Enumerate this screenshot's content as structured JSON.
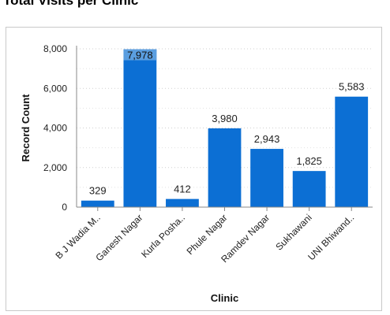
{
  "title": "Total Visits per Clinic",
  "chart_data": {
    "type": "bar",
    "xlabel": "Clinic",
    "ylabel": "Record Count",
    "ylim": [
      0,
      8000
    ],
    "yticks": [
      0,
      2000,
      4000,
      6000,
      8000
    ],
    "ytick_labels": [
      "0",
      "2,000",
      "4,000",
      "6,000",
      "8,000"
    ],
    "categories": [
      "B J Wadia M..",
      "Ganesh Nagar",
      "Kurla Posha..",
      "Phule Nagar",
      "Ramdev Nagar",
      "Sukhawani",
      "UNI Bhiwand.."
    ],
    "values": [
      329,
      7978,
      412,
      3980,
      2943,
      1825,
      5583
    ],
    "value_labels": [
      "329",
      "7,978",
      "412",
      "3,980",
      "2,943",
      "1,825",
      "5,583"
    ],
    "highlighted_category": "Ganesh Nagar",
    "grid": true,
    "colors": {
      "bar": "#0c6fd4",
      "highlight": "#5a9ee0"
    }
  }
}
